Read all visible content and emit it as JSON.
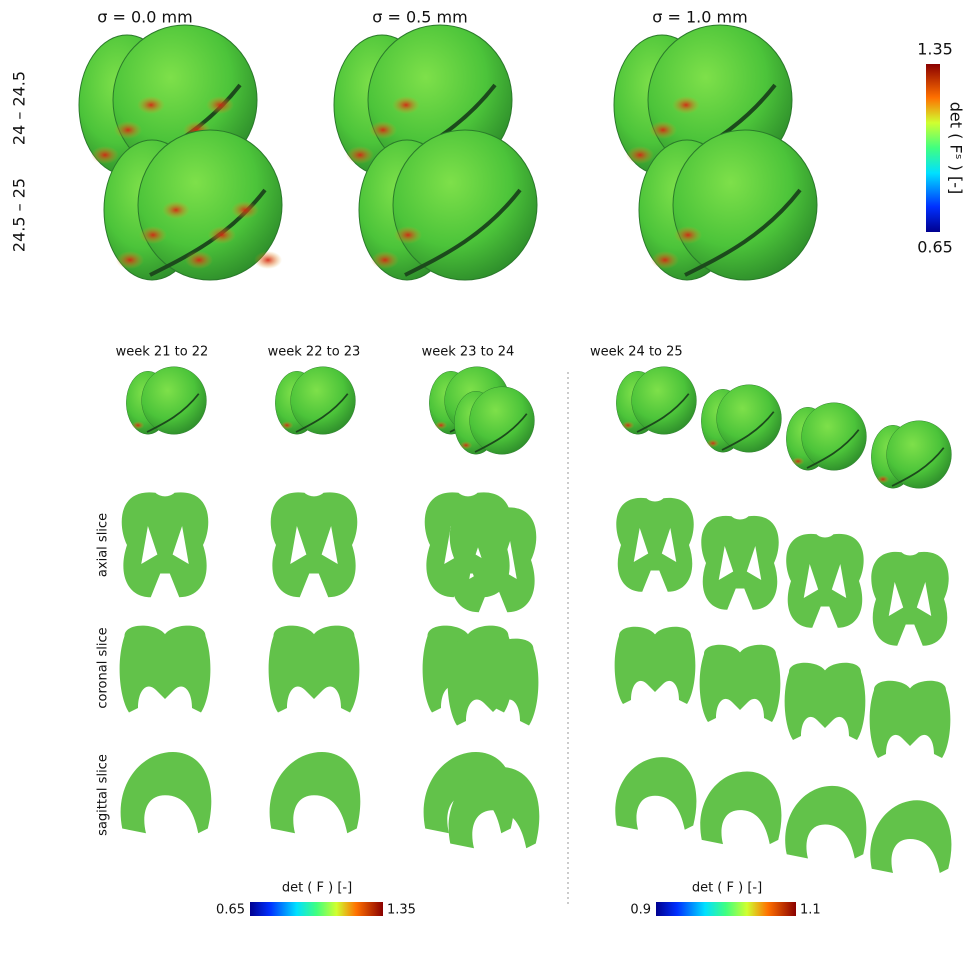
{
  "top_panel": {
    "column_titles": [
      "σ = 0.0 mm",
      "σ = 0.5 mm",
      "σ = 1.0 mm"
    ],
    "row_labels": [
      "24 – 24.5",
      "24.5 – 25"
    ],
    "colorbar": {
      "label": "det ( Fˢ ) [-]",
      "max": "1.35",
      "min": "0.65"
    }
  },
  "bottom_panel": {
    "column_titles": [
      "week 21 to 22",
      "week 22 to 23",
      "week 23 to 24",
      "week 24 to 25"
    ],
    "row_labels": [
      "axial slice",
      "coronal slice",
      "sagittal slice"
    ],
    "colorbar_left": {
      "label": "det ( F ) [-]",
      "min": "0.65",
      "max": "1.35"
    },
    "colorbar_right": {
      "label": "det ( F ) [-]",
      "min": "0.9",
      "max": "1.1"
    }
  }
}
